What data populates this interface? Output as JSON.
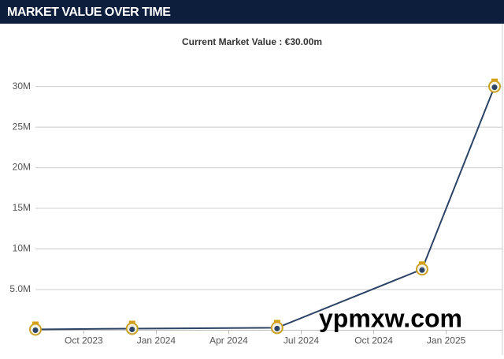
{
  "header": {
    "title": "MARKET VALUE OVER TIME"
  },
  "chart_data": {
    "type": "line",
    "title": "Current Market Value : €30.00m",
    "x": [
      "2023-08",
      "2023-12",
      "2024-06",
      "2024-12",
      "2025-03"
    ],
    "series": [
      {
        "name": "Market value",
        "color": "#2c4466",
        "values": [
          0.1,
          0.2,
          0.3,
          7.5,
          30
        ]
      }
    ],
    "xlim": [
      "2023-08",
      "2025-03"
    ],
    "xticks": [
      {
        "value": "2023-10",
        "label": "Oct 2023"
      },
      {
        "value": "2024-01",
        "label": "Jan 2024"
      },
      {
        "value": "2024-04",
        "label": "Apr 2024"
      },
      {
        "value": "2024-07",
        "label": "Jul 2024"
      },
      {
        "value": "2024-10",
        "label": "Oct 2024"
      },
      {
        "value": "2025-01",
        "label": "Jan 2025"
      }
    ],
    "ylim": [
      0,
      32
    ],
    "yticks": [
      {
        "value": 5,
        "label": "5.0M"
      },
      {
        "value": 10,
        "label": "10M"
      },
      {
        "value": 15,
        "label": "15M"
      },
      {
        "value": 20,
        "label": "20M"
      },
      {
        "value": 25,
        "label": "25M"
      },
      {
        "value": 30,
        "label": "30M"
      }
    ],
    "grid": true,
    "watermark": "ypmxw.com"
  }
}
